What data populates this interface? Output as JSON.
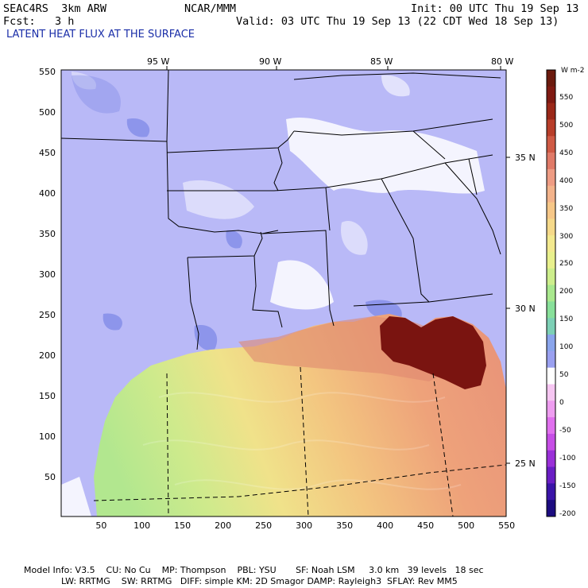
{
  "header": {
    "model": "SEAC4RS  3km ARW",
    "org": "NCAR/MMM",
    "init": "Init: 00 UTC Thu 19 Sep 13",
    "fcst": "Fcst:   3 h",
    "valid": "Valid: 03 UTC Thu 19 Sep 13 (22 CDT Wed 18 Sep 13)",
    "field_title": "LATENT HEAT FLUX AT THE SURFACE"
  },
  "map": {
    "top_lon_labels": [
      "95 W",
      "90 W",
      "85 W",
      "80 W"
    ],
    "right_lat_labels": [
      "35 N",
      "30 N",
      "25 N"
    ],
    "x_ticks": [
      "50",
      "100",
      "150",
      "200",
      "250",
      "300",
      "350",
      "400",
      "450",
      "500",
      "550"
    ],
    "y_ticks": [
      "550",
      "500",
      "450",
      "400",
      "350",
      "300",
      "250",
      "200",
      "150",
      "100",
      "50"
    ],
    "colors": {
      "land": "#b9b9f7",
      "land_blue": "#7b86e6",
      "white_patch": "#ffffff",
      "gulf_green": "#b6e98e",
      "gulf_yellow": "#f2e88c",
      "gulf_orange": "#f4c77f",
      "gulf_salmon": "#ef9f7a",
      "gulf_red": "#d96f5f",
      "gulf_dark": "#7a1410"
    }
  },
  "colorbar": {
    "unit": "W m-2",
    "labels": [
      "550",
      "500",
      "450",
      "400",
      "350",
      "300",
      "250",
      "200",
      "150",
      "100",
      "50",
      "0",
      "-50",
      "-100",
      "-150",
      "-200"
    ],
    "colors_top_to_bottom": [
      "#6b1a0e",
      "#7f1a12",
      "#9a2818",
      "#b83e2a",
      "#cf5a45",
      "#e07a68",
      "#ee9c84",
      "#f3b38b",
      "#f6c788",
      "#f5d98a",
      "#f3e98f",
      "#e8f08d",
      "#cdee8c",
      "#a9e88e",
      "#88e09a",
      "#7dd0b6",
      "#8aa5ec",
      "#9aa0f0",
      "#ffffff",
      "#f6c6f2",
      "#ee9df0",
      "#e070ee",
      "#c64ee6",
      "#9a30d8",
      "#6a1ec4",
      "#3a14a8",
      "#1c0c80"
    ]
  },
  "footer": {
    "line1": "Model Info: V3.5    CU: No Cu    MP: Thompson    PBL: YSU       SF: Noah LSM     3.0 km   39 levels   18 sec",
    "line2": "LW: RRTMG    SW: RRTMG   DIFF: simple KM: 2D Smagor DAMP: Rayleigh3  SFLAY: Rev MM5"
  }
}
